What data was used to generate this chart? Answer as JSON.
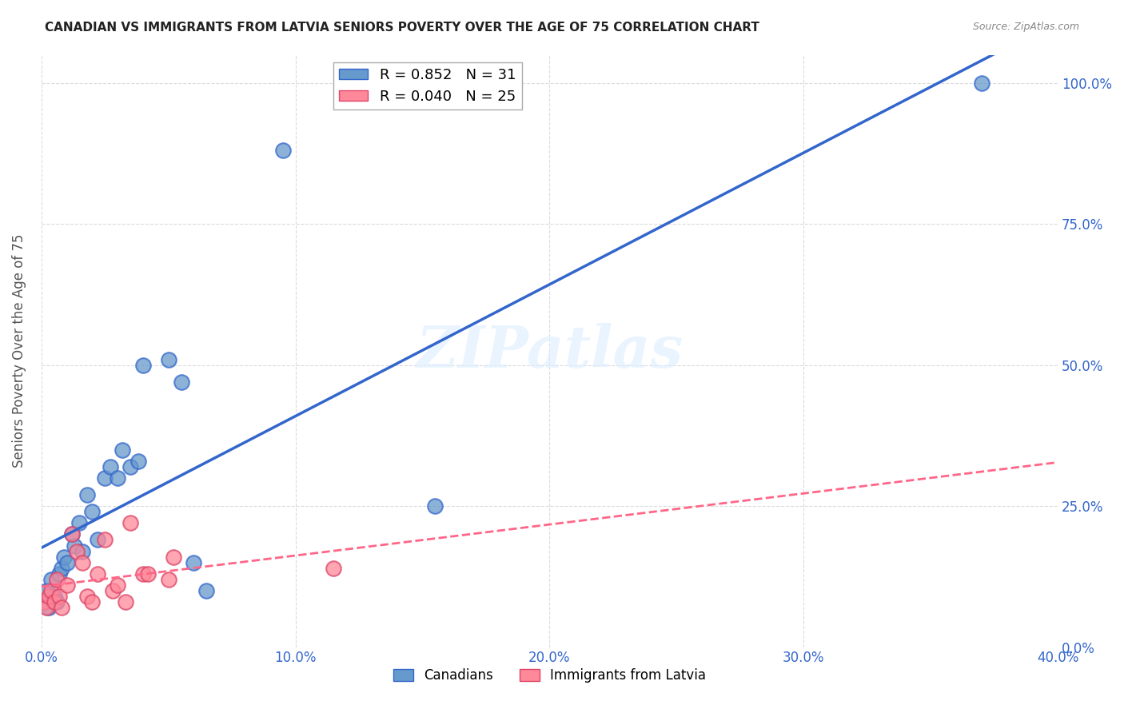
{
  "title": "CANADIAN VS IMMIGRANTS FROM LATVIA SENIORS POVERTY OVER THE AGE OF 75 CORRELATION CHART",
  "source": "Source: ZipAtlas.com",
  "ylabel": "Seniors Poverty Over the Age of 75",
  "xlabel": "",
  "watermark": "ZIPatlas",
  "canadians_x": [
    0.001,
    0.002,
    0.003,
    0.004,
    0.005,
    0.006,
    0.007,
    0.008,
    0.009,
    0.01,
    0.012,
    0.013,
    0.015,
    0.016,
    0.018,
    0.02,
    0.022,
    0.025,
    0.027,
    0.03,
    0.032,
    0.035,
    0.038,
    0.04,
    0.05,
    0.055,
    0.06,
    0.065,
    0.095,
    0.155,
    0.37
  ],
  "canadians_y": [
    0.08,
    0.1,
    0.07,
    0.12,
    0.09,
    0.08,
    0.13,
    0.14,
    0.16,
    0.15,
    0.2,
    0.18,
    0.22,
    0.17,
    0.27,
    0.24,
    0.19,
    0.3,
    0.32,
    0.3,
    0.35,
    0.32,
    0.33,
    0.5,
    0.51,
    0.47,
    0.15,
    0.1,
    0.88,
    0.25,
    1.0
  ],
  "immigrants_x": [
    0.001,
    0.002,
    0.003,
    0.004,
    0.005,
    0.006,
    0.007,
    0.008,
    0.01,
    0.012,
    0.014,
    0.016,
    0.018,
    0.02,
    0.022,
    0.025,
    0.028,
    0.03,
    0.033,
    0.035,
    0.04,
    0.042,
    0.05,
    0.052,
    0.115
  ],
  "immigrants_y": [
    0.08,
    0.07,
    0.09,
    0.1,
    0.08,
    0.12,
    0.09,
    0.07,
    0.11,
    0.2,
    0.17,
    0.15,
    0.09,
    0.08,
    0.13,
    0.19,
    0.1,
    0.11,
    0.08,
    0.22,
    0.13,
    0.13,
    0.12,
    0.16,
    0.14
  ],
  "canadian_color": "#6699CC",
  "immigrant_color": "#FF8899",
  "canadian_line_color": "#3366CC",
  "immigrant_line_color": "#FF6688",
  "immigrant_edge_color": "#DD4466",
  "R_canadian": 0.852,
  "N_canadian": 31,
  "R_immigrant": 0.04,
  "N_immigrant": 25,
  "xlim": [
    0,
    0.4
  ],
  "ylim": [
    0,
    1.05
  ],
  "xtick_vals": [
    0.0,
    0.1,
    0.2,
    0.3,
    0.4
  ],
  "xtick_labels": [
    "0.0%",
    "10.0%",
    "20.0%",
    "30.0%",
    "40.0%"
  ],
  "ytick_vals": [
    0.0,
    0.25,
    0.5,
    0.75,
    1.0
  ],
  "ytick_labels_right": [
    "0.0%",
    "25.0%",
    "50.0%",
    "75.0%",
    "100.0%"
  ],
  "grid_color": "#CCCCCC",
  "background_color": "#FFFFFF",
  "tick_label_color": "#3366CC"
}
